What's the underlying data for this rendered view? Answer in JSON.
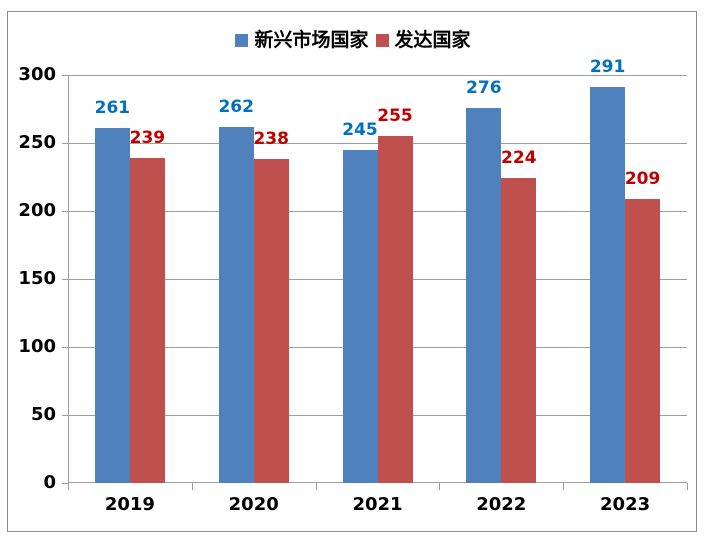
{
  "chart_data": {
    "type": "bar",
    "title": "",
    "xlabel": "",
    "ylabel": "",
    "categories": [
      "2019",
      "2020",
      "2021",
      "2022",
      "2023"
    ],
    "series": [
      {
        "name": "新兴市场国家",
        "color": "#4F81BD",
        "label_color": "#0070C0",
        "values": [
          261,
          262,
          245,
          276,
          291
        ]
      },
      {
        "name": "发达国家",
        "color": "#C0504D",
        "label_color": "#C00000",
        "values": [
          239,
          238,
          255,
          224,
          209
        ]
      }
    ],
    "ylim": [
      0,
      300
    ],
    "yticks": [
      0,
      50,
      100,
      150,
      200,
      250,
      300
    ],
    "grid": true,
    "legend_position": "top-center"
  },
  "colors": {
    "background": "#ffffff",
    "border": "#8c8c8c",
    "gridline": "#9e9e9e",
    "axis": "#9e9e9e",
    "tick_label_text": "#000000",
    "legend_text": "#000000"
  }
}
